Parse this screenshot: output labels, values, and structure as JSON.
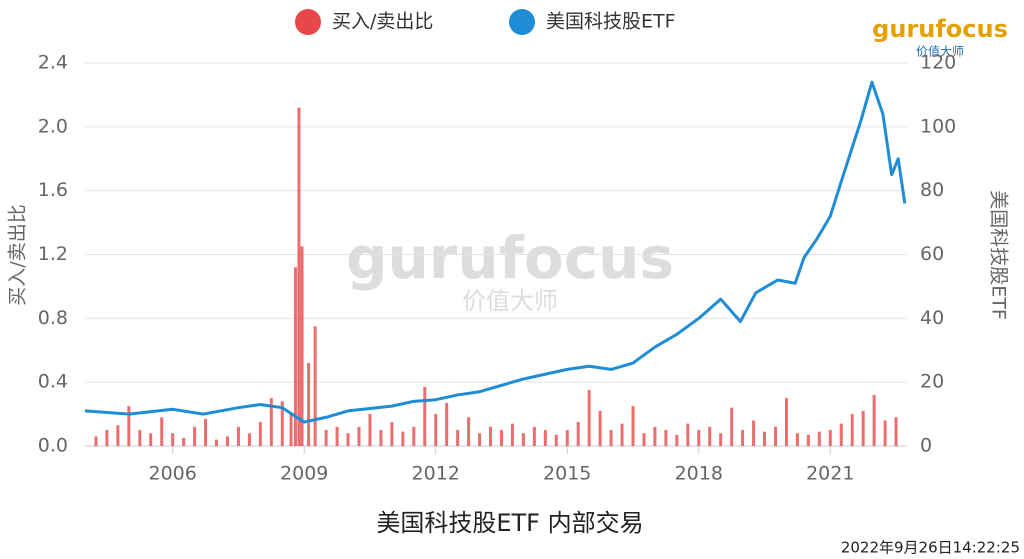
{
  "chart_data": {
    "type": "bar-line",
    "title": "美国科技股ETF 内部交易",
    "timestamp": "2022年9月26日14:22:25",
    "watermark": "gurufocus",
    "watermark_sub": "价值大师",
    "logo": "gurufocus",
    "logo_sub": "价值大师",
    "ylabel": "买入/卖出比",
    "y2label": "美国科技股ETF",
    "xlim": [
      2004,
      2022.75
    ],
    "xticks": [
      2006,
      2009,
      2012,
      2015,
      2018,
      2021
    ],
    "ylim": [
      0,
      2.4
    ],
    "yticks": [
      {
        "value": 0,
        "label": "0.0"
      },
      0.4,
      0.8,
      1.2,
      1.6,
      {
        "value": 2,
        "label": "2.0"
      },
      2.4
    ],
    "y2lim": [
      0,
      120
    ],
    "y2ticks": [
      0,
      20,
      40,
      60,
      80,
      100,
      120
    ],
    "grid": true,
    "series": [
      {
        "name": "买入/卖出比",
        "color": "#e8474a",
        "type": "bar",
        "x": [
          2004.25,
          2004.5,
          2004.75,
          2005,
          2005.25,
          2005.5,
          2005.75,
          2006,
          2006.25,
          2006.5,
          2006.75,
          2007,
          2007.25,
          2007.5,
          2007.75,
          2008,
          2008.25,
          2008.5,
          2008.7,
          2008.8,
          2008.88,
          2008.95,
          2009.1,
          2009.25,
          2009.5,
          2009.75,
          2010,
          2010.25,
          2010.5,
          2010.75,
          2011,
          2011.25,
          2011.5,
          2011.75,
          2012,
          2012.25,
          2012.5,
          2012.75,
          2013,
          2013.25,
          2013.5,
          2013.75,
          2014,
          2014.25,
          2014.5,
          2014.75,
          2015,
          2015.25,
          2015.5,
          2015.75,
          2016,
          2016.25,
          2016.5,
          2016.75,
          2017,
          2017.25,
          2017.5,
          2017.75,
          2018,
          2018.25,
          2018.5,
          2018.75,
          2019,
          2019.25,
          2019.5,
          2019.75,
          2020,
          2020.25,
          2020.5,
          2020.75,
          2021,
          2021.25,
          2021.5,
          2021.75,
          2022,
          2022.25,
          2022.5
        ],
        "values": [
          0.06,
          0.1,
          0.13,
          0.25,
          0.1,
          0.08,
          0.18,
          0.08,
          0.05,
          0.12,
          0.17,
          0.04,
          0.06,
          0.12,
          0.08,
          0.15,
          0.3,
          0.28,
          0.2,
          1.12,
          2.12,
          1.25,
          0.52,
          0.75,
          0.1,
          0.12,
          0.08,
          0.12,
          0.2,
          0.1,
          0.15,
          0.09,
          0.12,
          0.37,
          0.2,
          0.27,
          0.1,
          0.18,
          0.08,
          0.12,
          0.1,
          0.14,
          0.08,
          0.12,
          0.1,
          0.07,
          0.1,
          0.15,
          0.35,
          0.22,
          0.1,
          0.14,
          0.25,
          0.08,
          0.12,
          0.1,
          0.07,
          0.14,
          0.1,
          0.12,
          0.08,
          0.24,
          0.1,
          0.16,
          0.09,
          0.12,
          0.3,
          0.08,
          0.07,
          0.09,
          0.1,
          0.14,
          0.2,
          0.22,
          0.32,
          0.16,
          0.18
        ]
      },
      {
        "name": "美国科技股ETF",
        "color": "#1f8dd6",
        "type": "line",
        "axis": "y2",
        "x": [
          2004,
          2005,
          2006,
          2006.7,
          2007.5,
          2008,
          2008.5,
          2009,
          2009.5,
          2010,
          2011,
          2011.5,
          2012,
          2012.5,
          2013,
          2014,
          2015,
          2015.5,
          2016,
          2016.5,
          2017,
          2017.5,
          2018,
          2018.5,
          2018.95,
          2019.3,
          2019.8,
          2020.2,
          2020.4,
          2020.7,
          2021,
          2021.3,
          2021.7,
          2021.95,
          2022.2,
          2022.4,
          2022.55,
          2022.7
        ],
        "values": [
          11,
          10,
          11.5,
          10,
          12,
          13,
          12,
          7.5,
          9,
          11,
          12.5,
          14,
          14.5,
          16,
          17,
          21,
          24,
          25,
          24,
          26,
          31,
          35,
          40,
          46,
          39,
          48,
          52,
          51,
          59,
          65,
          72,
          85,
          102,
          114,
          104,
          85,
          90,
          76
        ]
      }
    ]
  }
}
